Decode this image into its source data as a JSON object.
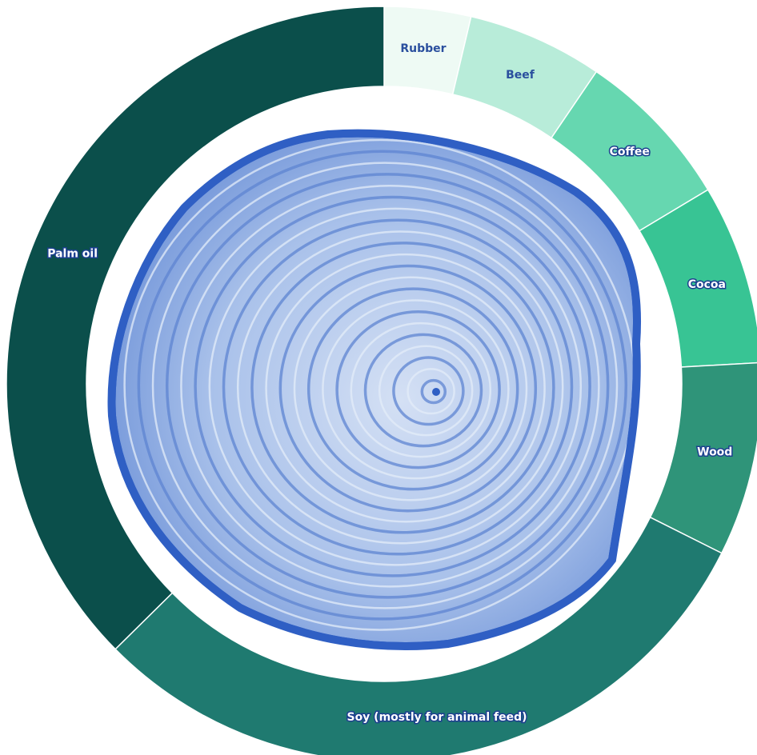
{
  "chart_data": {
    "type": "pie",
    "donut": true,
    "title": "",
    "categories": [
      "Rubber",
      "Beef",
      "Coffee",
      "Cocoa",
      "Wood",
      "Soy (mostly for animal feed)",
      "Palm oil"
    ],
    "values": [
      3.7,
      5.8,
      6.9,
      7.7,
      8.3,
      30.2,
      37.4
    ],
    "unit": "% of donut arc (estimated)",
    "colors": [
      "#eefaf4",
      "#b8ecd9",
      "#66d7b0",
      "#38c494",
      "#2f9479",
      "#1f7a70",
      "#0b4f4b"
    ],
    "label_colors": [
      "#2a4f9e",
      "#2a4f9e",
      "#ffffff",
      "#ffffff",
      "#ffffff",
      "#ffffff",
      "#ffffff"
    ],
    "label_outline_color": "#1c3f8f",
    "center_image": "tree-rings-illustration"
  }
}
